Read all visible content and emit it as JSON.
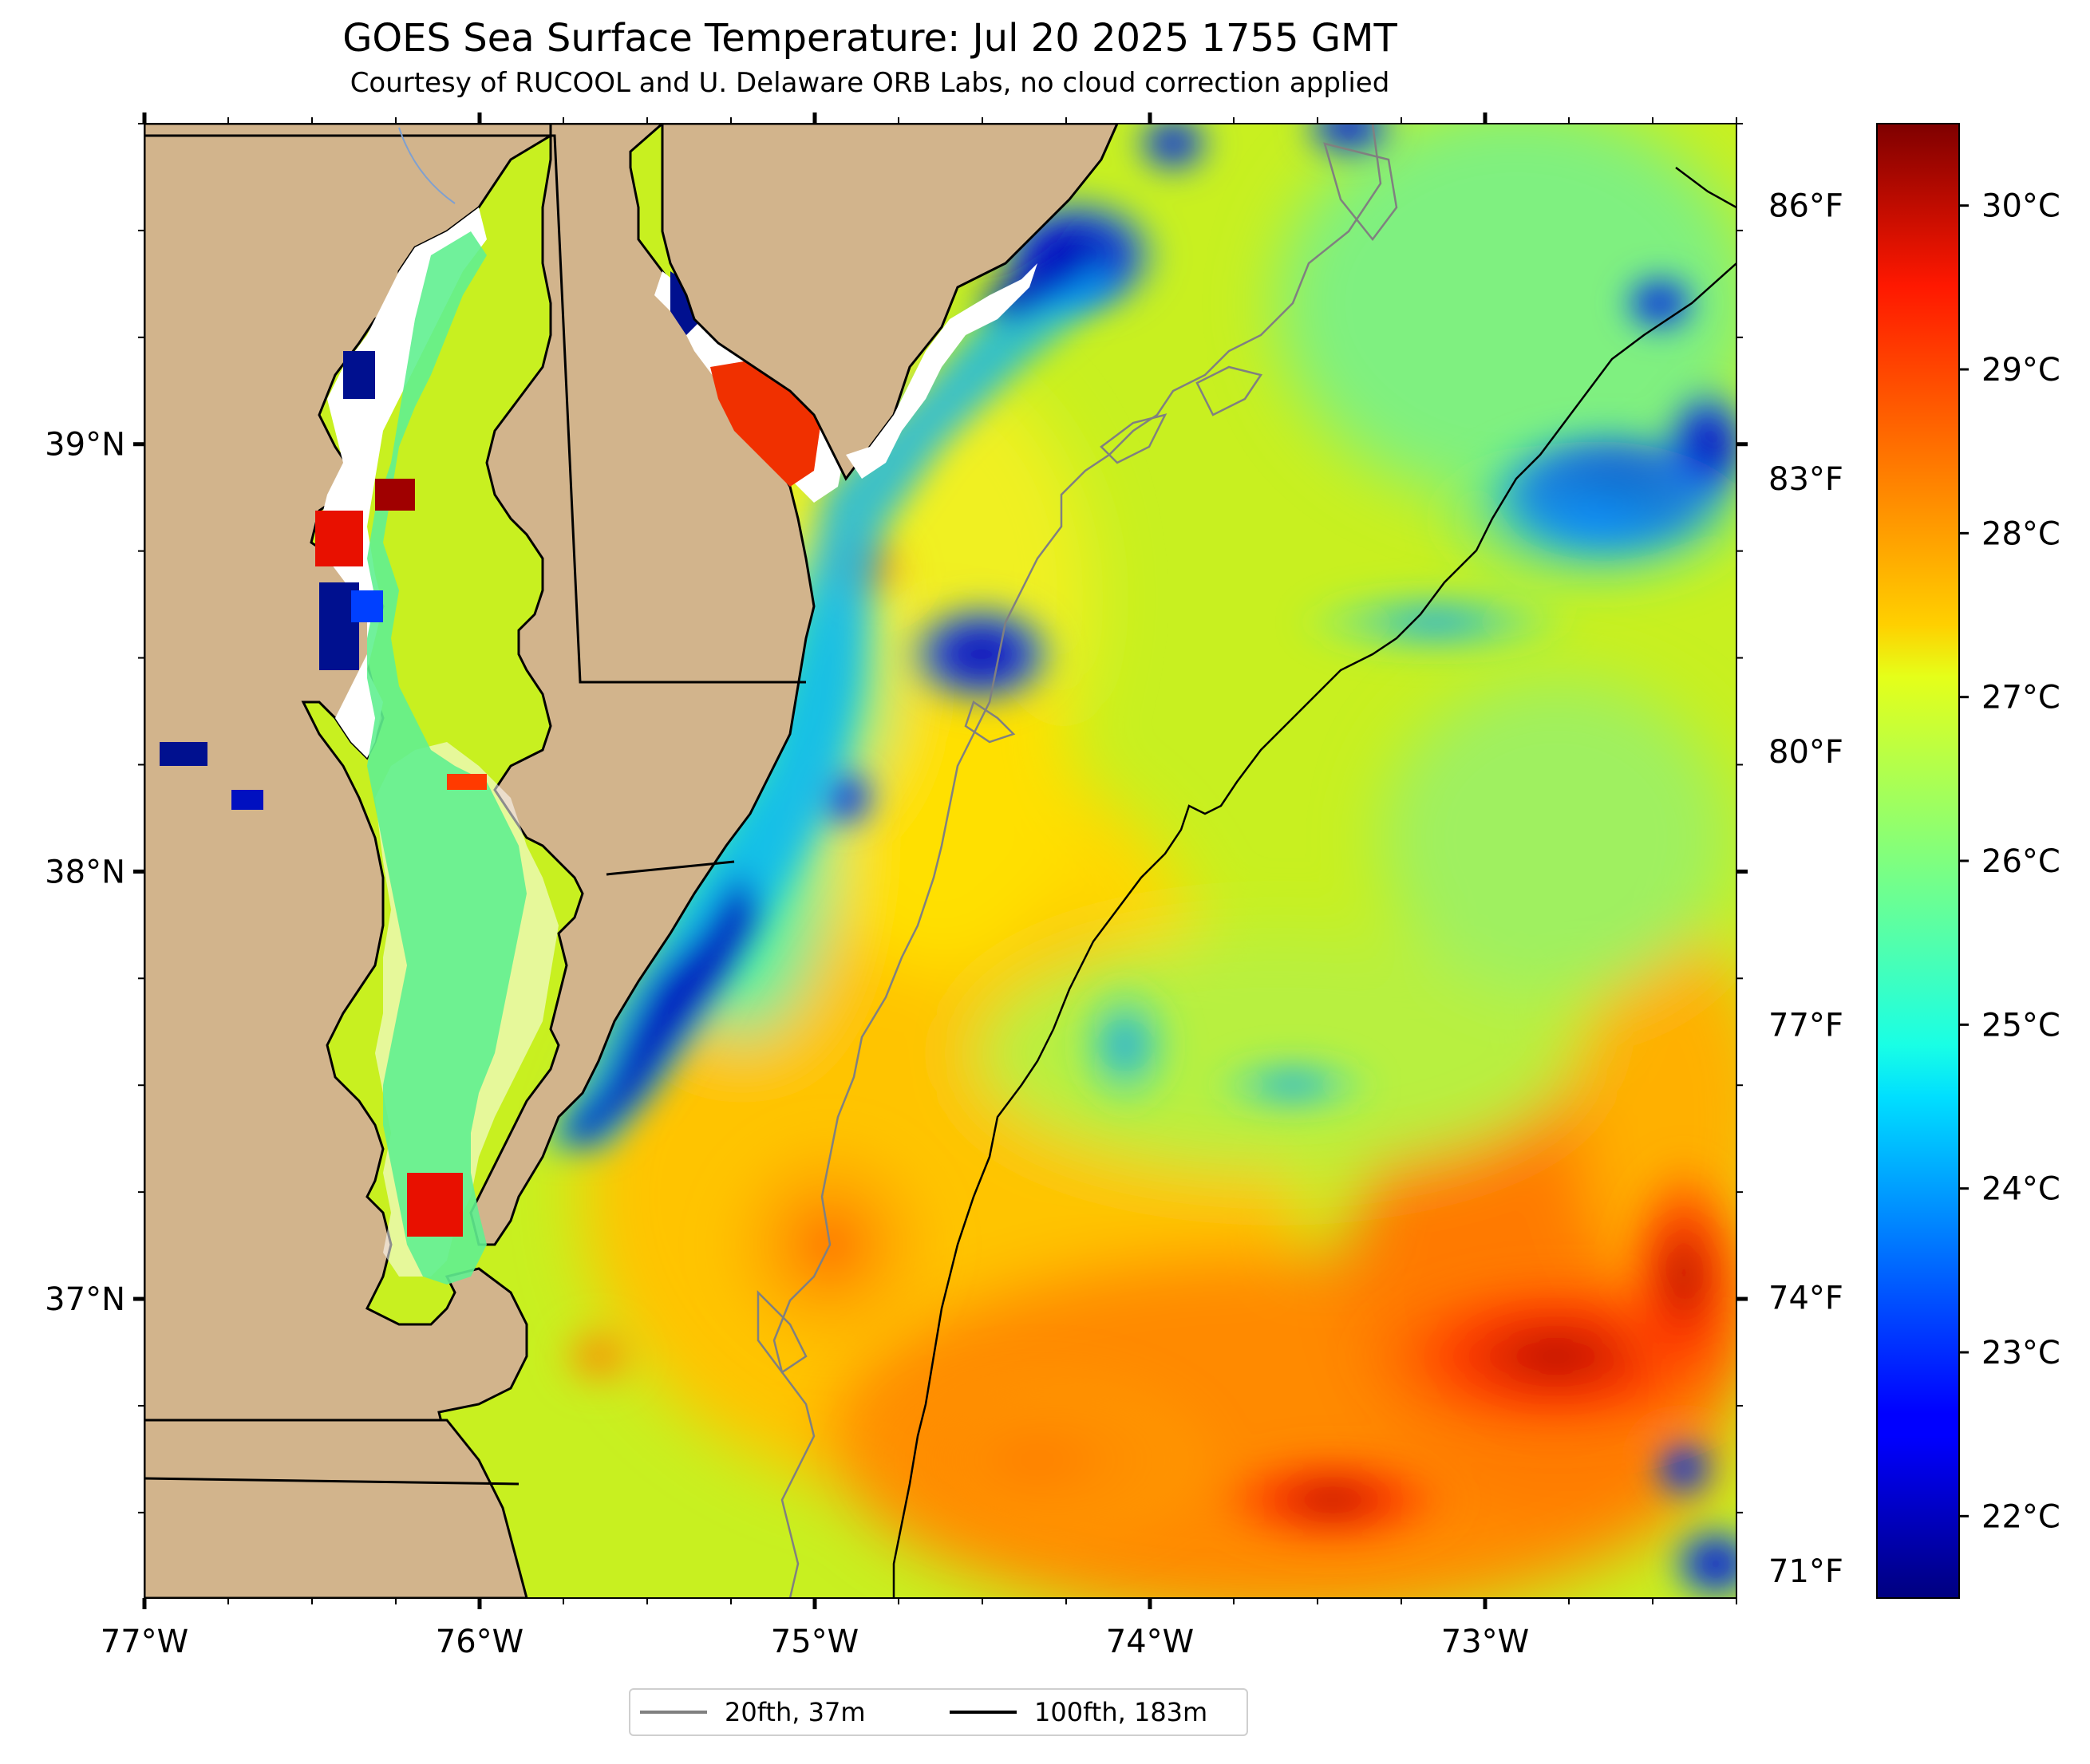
{
  "title": "GOES Sea Surface Temperature: Jul 20 2025 1755 GMT",
  "subtitle": "Courtesy of RUCOOL and U. Delaware ORB Labs, no cloud correction applied",
  "map": {
    "lon_range": [
      -77.0,
      -72.25
    ],
    "lat_range": [
      36.3,
      39.75
    ],
    "x_ticks": [
      "77°W",
      "76°W",
      "75°W",
      "74°W",
      "73°W"
    ],
    "y_ticks": [
      "39°N",
      "38°N",
      "37°N"
    ],
    "right_ticks": [
      "86°F",
      "83°F",
      "80°F",
      "77°F",
      "74°F",
      "71°F"
    ],
    "colors": {
      "land": "#d2b48c",
      "no_data": "#ffffff",
      "coast": "#000000"
    }
  },
  "colorbar": {
    "labels": [
      "30°C",
      "29°C",
      "28°C",
      "27°C",
      "26°C",
      "25°C",
      "24°C",
      "23°C",
      "22°C"
    ],
    "range_c": [
      21.5,
      30.5
    ],
    "colormap": "jet"
  },
  "legend": {
    "items": [
      {
        "label": "20fth, 37m",
        "color": "#808080"
      },
      {
        "label": "100fth, 183m",
        "color": "#000000"
      }
    ]
  }
}
